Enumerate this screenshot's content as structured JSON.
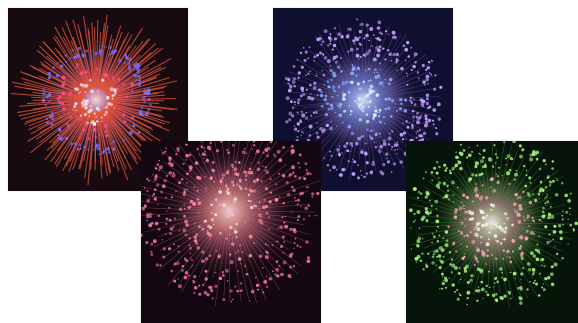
{
  "collage": {
    "photos": [
      {
        "id": "photo-1",
        "subject": "firework-burst",
        "colors": {
          "sky": "#170a10",
          "core": "#f6e6ee",
          "inner": "#ff4f88",
          "ring": "#7c6cff",
          "rays": "#e4553a"
        }
      },
      {
        "id": "photo-2",
        "subject": "firework-burst",
        "colors": {
          "sky": "#0f1030",
          "core": "#d7ecff",
          "inner": "#8aa8ff",
          "ring": "#c9a0ff",
          "rays": "#a078ff"
        }
      },
      {
        "id": "photo-3",
        "subject": "firework-burst",
        "colors": {
          "sky": "#140711",
          "core": "#ffd9d9",
          "inner": "#ff8aa0",
          "ring": "#f06fb2",
          "rays": "#f4a06a"
        }
      },
      {
        "id": "photo-4",
        "subject": "firework-burst",
        "colors": {
          "sky": "#071409",
          "core": "#f3f7e8",
          "inner": "#f2a3b5",
          "ring": "#9ff07a",
          "rays": "#5fcf52"
        }
      }
    ]
  }
}
